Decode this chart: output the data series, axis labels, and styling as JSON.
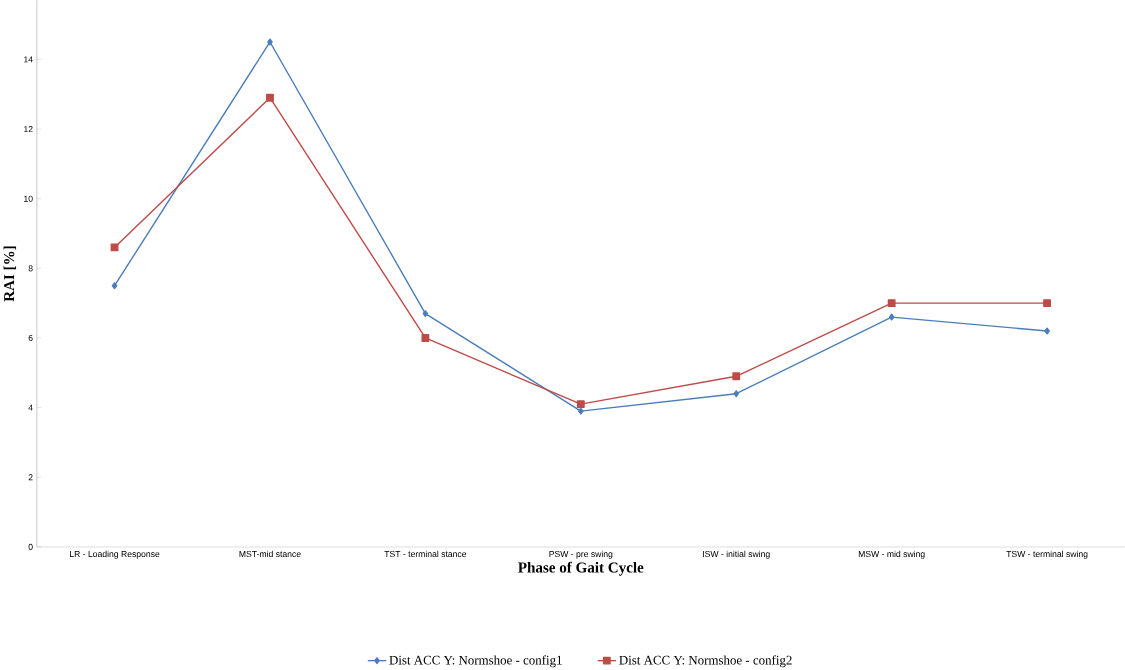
{
  "chart_data": {
    "type": "line",
    "xlabel": "Phase of Gait Cycle",
    "ylabel": "RAI [%]",
    "categories": [
      "LR - Loading Response",
      "MST-mid stance",
      "TST - terminal stance",
      "PSW - pre swing",
      "ISW - initial swing",
      "MSW - mid swing",
      "TSW - terminal swing"
    ],
    "series": [
      {
        "name": "Dist ACC Y: Normshoe -  config1",
        "color": "#4a7ebb",
        "marker": "diamond",
        "values": [
          7.5,
          14.5,
          6.7,
          3.9,
          4.4,
          6.6,
          6.2
        ]
      },
      {
        "name": "Dist ACC Y: Normshoe -  config2",
        "color": "#be4b48",
        "marker": "square",
        "values": [
          8.6,
          12.9,
          6.0,
          4.1,
          4.9,
          7.0,
          7.0
        ]
      }
    ],
    "ylim": [
      0,
      15.7
    ],
    "yticks": [
      0,
      2,
      4,
      6,
      8,
      10,
      12,
      14
    ],
    "grid": false,
    "legend": "bottom",
    "line_style": "solid"
  }
}
